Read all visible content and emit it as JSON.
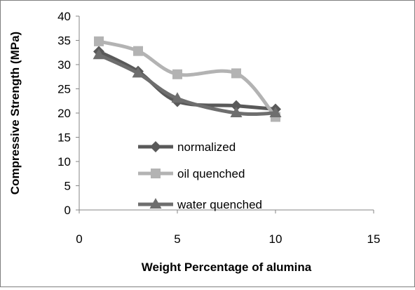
{
  "chart_data": {
    "type": "scatter",
    "subtype": "smooth lines with markers",
    "xlabel": "Weight Percentage of alumina",
    "ylabel": "Compressive Strength (MPa)",
    "xlim": [
      0,
      15
    ],
    "ylim": [
      0,
      40
    ],
    "xticks": [
      "0",
      "5",
      "10",
      "15"
    ],
    "yticks": [
      "0",
      "5",
      "10",
      "15",
      "20",
      "25",
      "30",
      "35",
      "40"
    ],
    "grid": false,
    "legend_position": "inside, lower-center",
    "series": [
      {
        "name": "normalized",
        "marker": "diamond",
        "color": "#595959",
        "x": [
          1,
          3,
          5,
          8,
          10
        ],
        "y": [
          32.7,
          28.6,
          22.4,
          21.5,
          20.8
        ]
      },
      {
        "name": "oil quenched",
        "marker": "square",
        "color": "#b3b3b3",
        "x": [
          1,
          3,
          5,
          8,
          10
        ],
        "y": [
          34.8,
          32.8,
          28.0,
          28.2,
          19.2
        ]
      },
      {
        "name": "water quenched",
        "marker": "triangle",
        "color": "#6e6e6e",
        "x": [
          1,
          3,
          5,
          8,
          10
        ],
        "y": [
          32.0,
          28.2,
          23.0,
          20.0,
          20.0
        ]
      }
    ]
  }
}
